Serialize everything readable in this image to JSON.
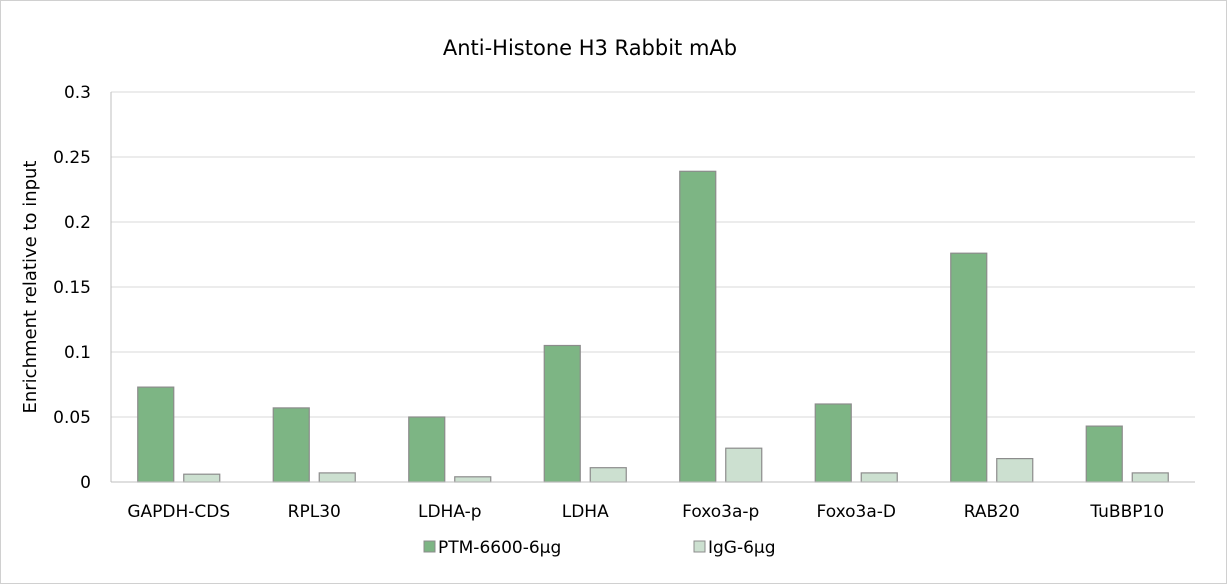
{
  "chart_data": {
    "type": "bar",
    "title": "Anti-Histone H3 Rabbit mAb",
    "xlabel": "",
    "ylabel": "Enrichment relative to input",
    "ylim": [
      0,
      0.3
    ],
    "yticks": [
      "0",
      "0.05",
      "0.1",
      "0.15",
      "0.2",
      "0.25",
      "0.3"
    ],
    "grid": true,
    "legend_position": "bottom",
    "categories": [
      "GAPDH-CDS",
      "RPL30",
      "LDHA-p",
      "LDHA",
      "Foxo3a-p",
      "Foxo3a-D",
      "RAB20",
      "TuBBP10"
    ],
    "series": [
      {
        "name": "PTM-6600-6μg",
        "color": "#7db584",
        "values": [
          0.073,
          0.057,
          0.05,
          0.105,
          0.239,
          0.06,
          0.176,
          0.043
        ]
      },
      {
        "name": "IgG-6μg",
        "color": "#cce0d0",
        "values": [
          0.006,
          0.007,
          0.004,
          0.011,
          0.026,
          0.007,
          0.018,
          0.007
        ]
      }
    ]
  }
}
